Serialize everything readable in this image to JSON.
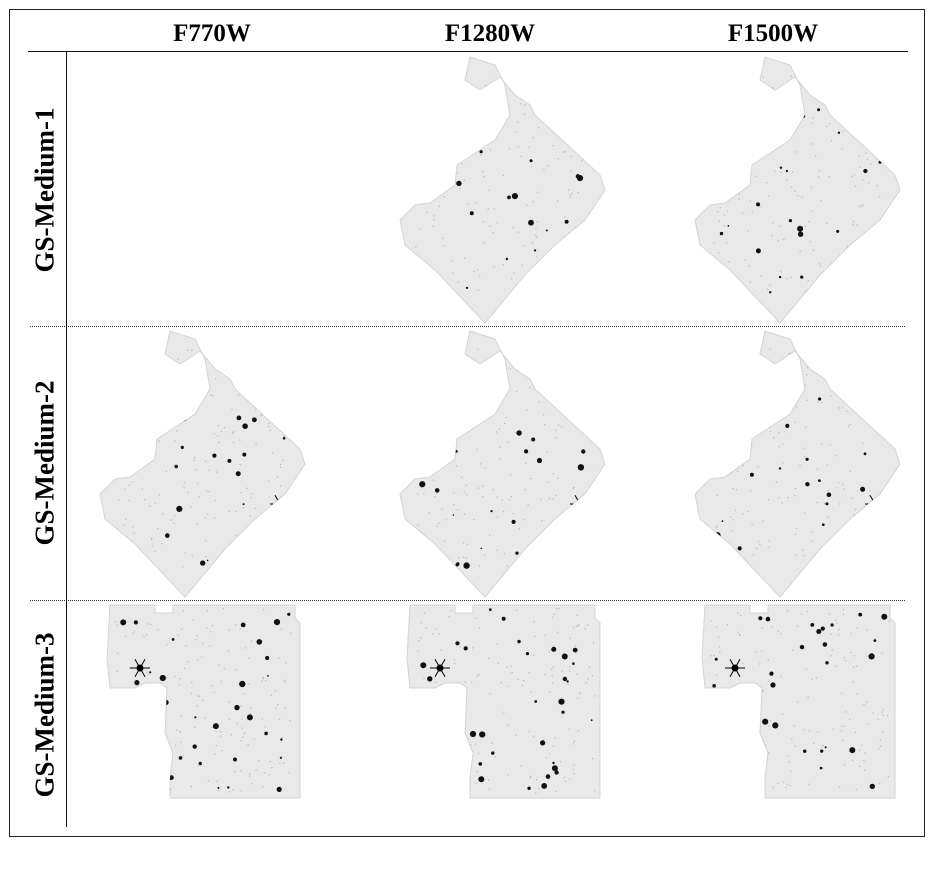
{
  "columns": [
    "F770W",
    "F1280W",
    "F1500W"
  ],
  "rows": [
    "GS-Medium-1",
    "GS-Medium-2",
    "GS-Medium-3"
  ],
  "panels": [
    {
      "row": "GS-Medium-1",
      "filter": "F770W",
      "present": false
    },
    {
      "row": "GS-Medium-1",
      "filter": "F1280W",
      "present": true
    },
    {
      "row": "GS-Medium-1",
      "filter": "F1500W",
      "present": true
    },
    {
      "row": "GS-Medium-2",
      "filter": "F770W",
      "present": true
    },
    {
      "row": "GS-Medium-2",
      "filter": "F1280W",
      "present": true
    },
    {
      "row": "GS-Medium-2",
      "filter": "F1500W",
      "present": true
    },
    {
      "row": "GS-Medium-3",
      "filter": "F770W",
      "present": true
    },
    {
      "row": "GS-Medium-3",
      "filter": "F1280W",
      "present": true
    },
    {
      "row": "GS-Medium-3",
      "filter": "F1500W",
      "present": true
    }
  ],
  "colors": {
    "mosaic_fill": "#e9e9e9",
    "source": "#111111",
    "frame": "#222222"
  }
}
